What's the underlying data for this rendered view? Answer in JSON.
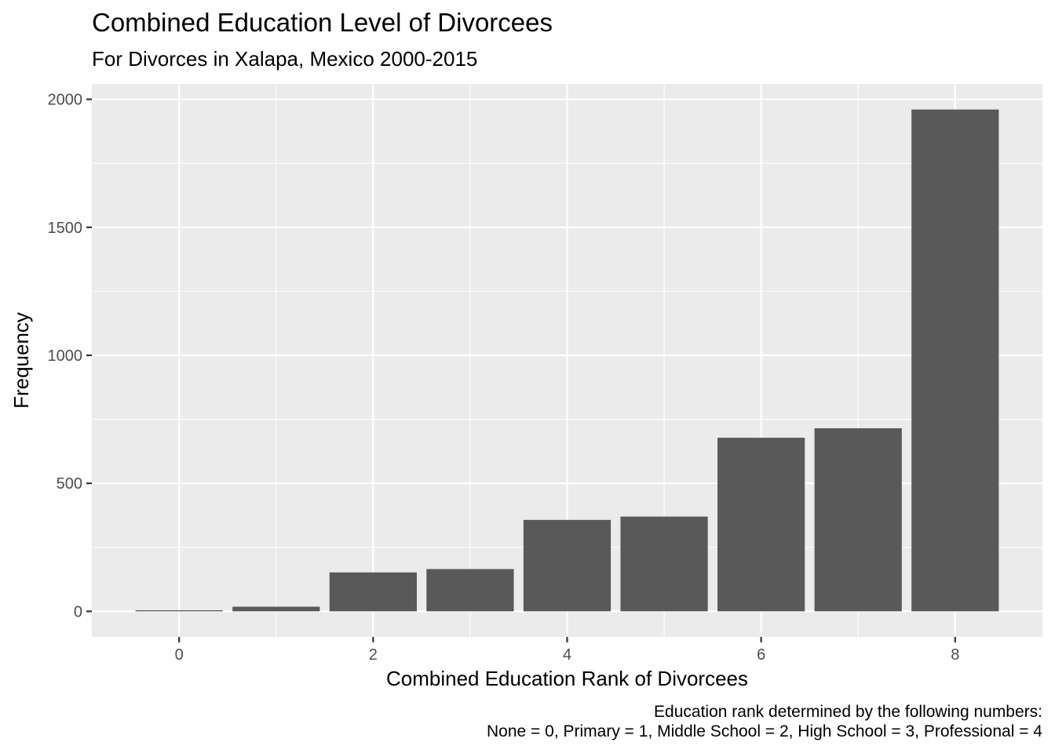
{
  "title": "Combined Education Level of Divorcees",
  "subtitle": "For Divorces in Xalapa, Mexico 2000-2015",
  "caption": {
    "line1": "Education rank determined by the following numbers:",
    "line2": "None = 0, Primary = 1, Middle School = 2, High School = 3, Professional = 4"
  },
  "chart_data": {
    "type": "bar",
    "title": "Combined Education Level of Divorcees",
    "subtitle": "For Divorces in Xalapa, Mexico 2000-2015",
    "xlabel": "Combined Education Rank of Divorcees",
    "ylabel": "Frequency",
    "x": [
      0,
      1,
      2,
      3,
      4,
      5,
      6,
      7,
      8
    ],
    "values": [
      4,
      18,
      152,
      165,
      357,
      370,
      678,
      715,
      1960
    ],
    "xlim": [
      -0.9,
      8.9
    ],
    "ylim": [
      -100,
      2060
    ],
    "x_ticks": [
      0,
      2,
      4,
      6,
      8
    ],
    "y_ticks": [
      0,
      500,
      1000,
      1500,
      2000
    ],
    "bar_color": "#595959",
    "panel_background": "#ebebeb",
    "grid": true,
    "legend": "none"
  }
}
